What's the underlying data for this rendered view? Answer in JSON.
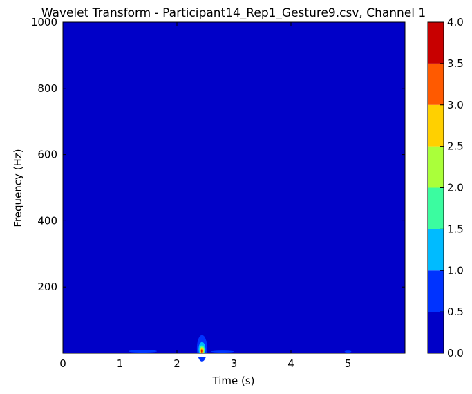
{
  "chart_data": {
    "type": "heatmap",
    "title": "Wavelet Transform - Participant14_Rep1_Gesture9.csv, Channel 1",
    "xlabel": "Time (s)",
    "ylabel": "Frequency (Hz)",
    "xlim": [
      0,
      6
    ],
    "ylim": [
      0,
      1000
    ],
    "x_ticks": [
      0,
      1,
      2,
      3,
      4,
      5
    ],
    "x_tick_labels": [
      "0",
      "1",
      "2",
      "3",
      "4",
      "5"
    ],
    "y_ticks": [
      200,
      400,
      600,
      800,
      1000
    ],
    "y_tick_labels": [
      "200",
      "400",
      "600",
      "800",
      "1000"
    ],
    "grid": false,
    "background_level_color": "#0000c8",
    "colorbar": {
      "range": [
        0,
        4
      ],
      "levels": [
        0.0,
        0.5,
        1.0,
        1.5,
        2.0,
        2.5,
        3.0,
        3.5,
        4.0
      ],
      "tick_labels": [
        "0.0",
        "0.5",
        "1.0",
        "1.5",
        "2.0",
        "2.5",
        "3.0",
        "3.5",
        "4.0"
      ],
      "colors": [
        "#0000c8",
        "#0033ff",
        "#00bbff",
        "#3bfca0",
        "#aaff3a",
        "#ffd000",
        "#ff5a00",
        "#c80000"
      ]
    },
    "hotspots": [
      {
        "time": 2.44,
        "freq": 15,
        "dt": 0.09,
        "df": 40,
        "level": 0.75
      },
      {
        "time": 2.44,
        "freq": 12,
        "dt": 0.06,
        "df": 22,
        "level": 1.25
      },
      {
        "time": 2.44,
        "freq": 10,
        "dt": 0.045,
        "df": 14,
        "level": 1.75
      },
      {
        "time": 2.44,
        "freq": 9,
        "dt": 0.035,
        "df": 10,
        "level": 2.25
      },
      {
        "time": 2.44,
        "freq": 8,
        "dt": 0.028,
        "df": 8,
        "level": 2.75
      },
      {
        "time": 2.44,
        "freq": 7,
        "dt": 0.02,
        "df": 6,
        "level": 3.25
      },
      {
        "time": 2.44,
        "freq": 6,
        "dt": 0.012,
        "df": 4,
        "level": 3.75
      },
      {
        "time": 1.4,
        "freq": 6,
        "dt": 0.25,
        "df": 4,
        "level": 0.75
      },
      {
        "time": 2.8,
        "freq": 5,
        "dt": 0.2,
        "df": 3,
        "level": 0.75
      },
      {
        "time": 5.0,
        "freq": 5,
        "dt": 0.06,
        "df": 3,
        "level": 0.75
      }
    ]
  }
}
